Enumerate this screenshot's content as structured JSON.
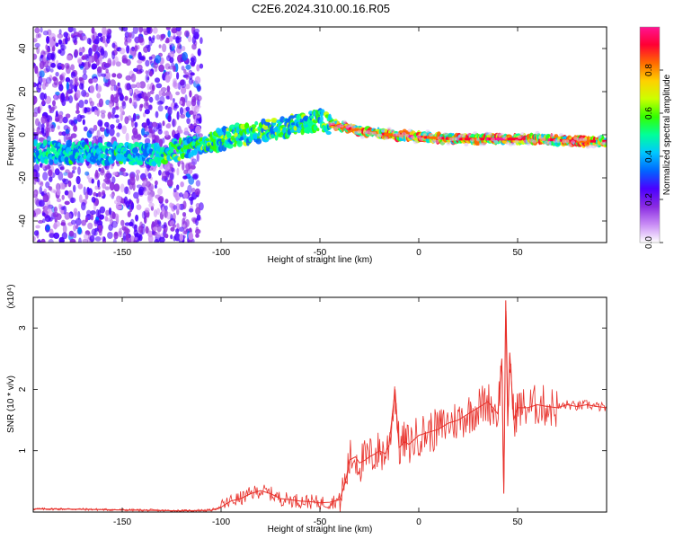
{
  "title": "C2E6.2024.310.00.16.R05",
  "chart_data": [
    {
      "type": "heatmap",
      "xlabel": "Height of straight line (km)",
      "ylabel": "Frequency (Hz)",
      "xlim": [
        -195,
        95
      ],
      "ylim": [
        -50,
        50
      ],
      "xticks": [
        -150,
        -100,
        -50,
        0,
        50
      ],
      "yticks": [
        -40,
        -20,
        0,
        20,
        40
      ],
      "colorbar": {
        "label": "Normalized spectral amplitude",
        "range": [
          0,
          1
        ],
        "ticks": [
          "0.0",
          "0.2",
          "0.4",
          "0.6",
          "0.8"
        ],
        "colors": [
          "#ffffff",
          "#c98df5",
          "#8a2be2",
          "#4b00ff",
          "#0066ff",
          "#00c8ff",
          "#00ff99",
          "#33ff00",
          "#ccff00",
          "#ffd000",
          "#ff6a00",
          "#ff0033",
          "#ff1493"
        ]
      },
      "ridge": {
        "x": [
          -195,
          -130,
          -110,
          -90,
          -70,
          -50,
          -45,
          -30,
          -15,
          0,
          20,
          40,
          60,
          80,
          95
        ],
        "y": [
          -8,
          -9,
          -4,
          0,
          3,
          7,
          5,
          2,
          0,
          -1,
          -2,
          -2,
          -2,
          -3,
          -3
        ]
      }
    },
    {
      "type": "line",
      "xlabel": "Height of straight line (km)",
      "ylabel": "SNR (10 * v/v)",
      "y_multiplier": "(x10⁴)",
      "xlim": [
        -195,
        95
      ],
      "ylim": [
        0,
        3.5
      ],
      "xticks": [
        -150,
        -100,
        -50,
        0,
        50
      ],
      "yticks": [
        1,
        2,
        3
      ],
      "color": "#e8302a",
      "series": [
        {
          "x": [
            -195,
            -180,
            -160,
            -140,
            -120,
            -105,
            -100,
            -95,
            -90,
            -85,
            -80,
            -75,
            -70,
            -65,
            -60,
            -55,
            -50,
            -45,
            -40,
            -37,
            -35,
            -32,
            -30,
            -27,
            -25,
            -22,
            -20,
            -17,
            -15,
            -12,
            -10,
            -7,
            -5,
            0,
            5,
            10,
            15,
            20,
            25,
            30,
            35,
            40,
            42,
            43,
            44,
            45,
            46,
            48,
            50,
            55,
            60,
            65,
            70,
            75,
            80,
            85,
            90,
            95
          ],
          "y": [
            0.05,
            0.05,
            0.04,
            0.03,
            0.02,
            0.03,
            0.08,
            0.18,
            0.22,
            0.3,
            0.35,
            0.3,
            0.22,
            0.2,
            0.18,
            0.17,
            0.15,
            0.16,
            0.2,
            0.5,
            0.85,
            0.9,
            0.8,
            0.85,
            0.9,
            0.95,
            1.0,
            0.95,
            1.1,
            2.0,
            1.05,
            1.15,
            1.1,
            1.25,
            1.3,
            1.35,
            1.45,
            1.5,
            1.6,
            1.7,
            1.8,
            1.6,
            2.5,
            0.3,
            3.45,
            1.4,
            2.6,
            1.5,
            1.7,
            1.7,
            1.75,
            1.72,
            1.7,
            1.75,
            1.72,
            1.75,
            1.72,
            1.7
          ]
        }
      ]
    }
  ]
}
